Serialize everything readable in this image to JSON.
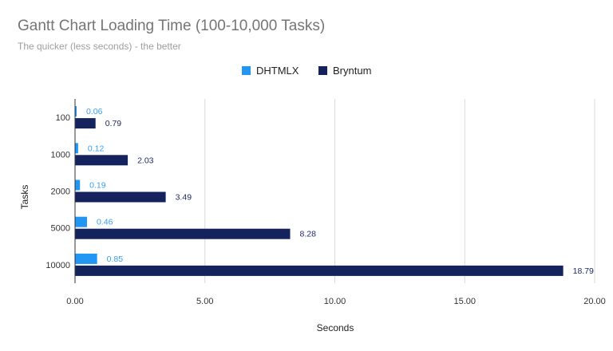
{
  "chart_data": {
    "type": "bar",
    "orientation": "horizontal",
    "title": "Gantt Chart Loading Time (100-10,000 Tasks)",
    "subtitle": "The quicker (less seconds) - the better",
    "xlabel": "Seconds",
    "ylabel": "Tasks",
    "xlim": [
      0,
      20
    ],
    "xticks": [
      "0.00",
      "5.00",
      "10.00",
      "15.00",
      "20.00"
    ],
    "grid": true,
    "legend_position": "top-center",
    "categories": [
      "100",
      "1000",
      "2000",
      "5000",
      "10000"
    ],
    "series": [
      {
        "name": "DHTMLX",
        "color": "#2196f3",
        "values": [
          0.06,
          0.12,
          0.19,
          0.46,
          0.85
        ],
        "labels": [
          "0.06",
          "0.12",
          "0.19",
          "0.46",
          "0.85"
        ]
      },
      {
        "name": "Bryntum",
        "color": "#14235e",
        "values": [
          0.79,
          2.03,
          3.49,
          8.28,
          18.79
        ],
        "labels": [
          "0.79",
          "2.03",
          "3.49",
          "8.28",
          "18.79"
        ]
      }
    ]
  }
}
